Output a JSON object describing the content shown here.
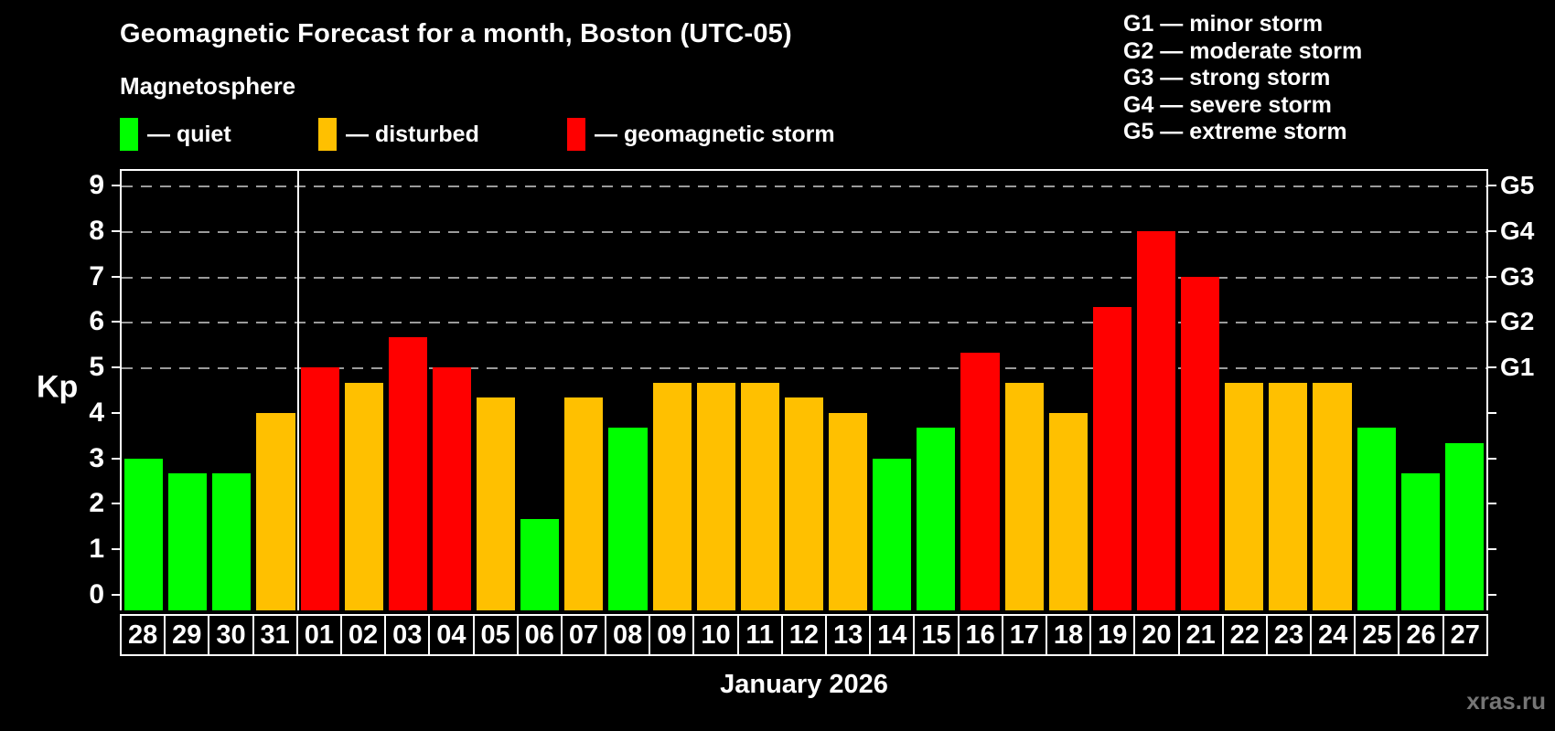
{
  "title": "Geomagnetic Forecast for a month, Boston (UTC-05)",
  "subtitle": "Magnetosphere",
  "legend": {
    "items": [
      {
        "key": "quiet",
        "label": "— quiet",
        "color": "#00FF00"
      },
      {
        "key": "disturbed",
        "label": "— disturbed",
        "color": "#FFC000"
      },
      {
        "key": "storm",
        "label": "— geomagnetic storm",
        "color": "#FF0000"
      }
    ]
  },
  "g_legend": [
    "G1 — minor storm",
    "G2 — moderate storm",
    "G3 — strong storm",
    "G4 — severe storm",
    "G5 — extreme storm"
  ],
  "y_axis": {
    "label": "Kp",
    "ticks": [
      0,
      1,
      2,
      3,
      4,
      5,
      6,
      7,
      8,
      9
    ]
  },
  "right_axis": {
    "labels": [
      {
        "text": "G1",
        "kp": 5
      },
      {
        "text": "G2",
        "kp": 6
      },
      {
        "text": "G3",
        "kp": 7
      },
      {
        "text": "G4",
        "kp": 8
      },
      {
        "text": "G5",
        "kp": 9
      }
    ]
  },
  "x_axis_label": "January 2026",
  "watermark": "xras.ru",
  "chart_data": {
    "type": "bar",
    "title": "Geomagnetic Forecast for a month, Boston (UTC-05)",
    "xlabel": "January 2026",
    "ylabel": "Kp",
    "ylim": [
      0,
      9
    ],
    "yticks": [
      0,
      1,
      2,
      3,
      4,
      5,
      6,
      7,
      8,
      9
    ],
    "gridlines_at": [
      5,
      6,
      7,
      8,
      9
    ],
    "grid": "dashed horizontal at G-storm levels only",
    "legend_position": "top-left",
    "month_boundary_index": 3,
    "categories": [
      "28",
      "29",
      "30",
      "31",
      "01",
      "02",
      "03",
      "04",
      "05",
      "06",
      "07",
      "08",
      "09",
      "10",
      "11",
      "12",
      "13",
      "14",
      "15",
      "16",
      "17",
      "18",
      "19",
      "20",
      "21",
      "22",
      "23",
      "24",
      "25",
      "26",
      "27"
    ],
    "values": [
      3,
      2.67,
      2.67,
      4,
      5,
      4.67,
      5.67,
      5,
      4.33,
      1.67,
      4.33,
      3.67,
      4.67,
      4.67,
      4.67,
      4.33,
      4,
      3,
      3.67,
      5.33,
      4.67,
      4,
      6.33,
      8,
      7,
      4.67,
      4.67,
      4.67,
      3.67,
      2.67,
      3.33
    ],
    "statuses": [
      "quiet",
      "quiet",
      "quiet",
      "disturbed",
      "storm",
      "disturbed",
      "storm",
      "storm",
      "disturbed",
      "quiet",
      "disturbed",
      "quiet",
      "disturbed",
      "disturbed",
      "disturbed",
      "disturbed",
      "disturbed",
      "quiet",
      "quiet",
      "storm",
      "disturbed",
      "disturbed",
      "storm",
      "storm",
      "storm",
      "disturbed",
      "disturbed",
      "disturbed",
      "quiet",
      "quiet",
      "quiet"
    ],
    "colors": {
      "quiet": "#00FF00",
      "disturbed": "#FFC000",
      "storm": "#FF0000"
    }
  }
}
